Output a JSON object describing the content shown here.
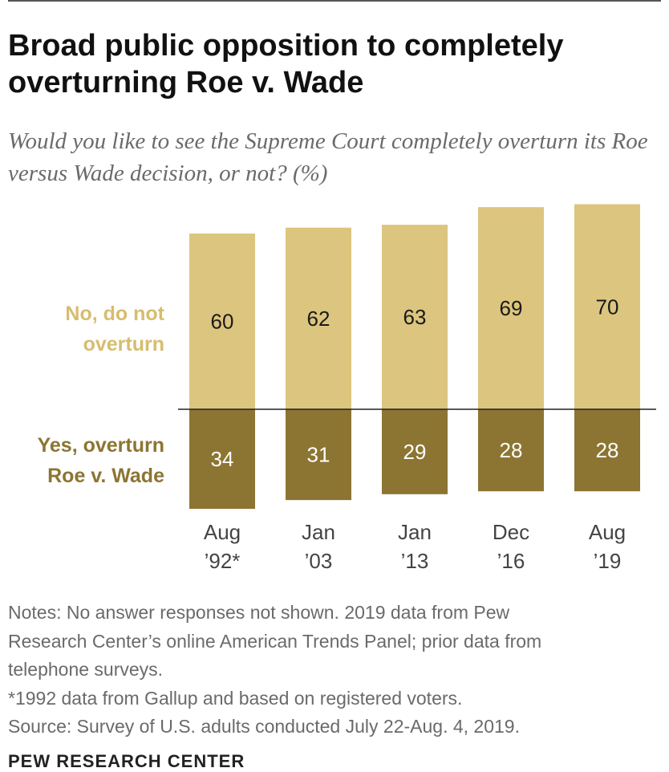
{
  "title": "Broad public opposition to completely overturning Roe v. Wade",
  "subtitle": "Would you like to see the Supreme Court completely overturn its Roe versus Wade decision, or not? (%)",
  "colors": {
    "no_bar": "#dcc57e",
    "yes_bar": "#8c7532",
    "no_label": "#d6bd6e",
    "yes_label": "#8c7532",
    "bar_text": "#1a1a1a",
    "bar_text_dark": "#ffffff",
    "tick": "#444444"
  },
  "chart_data": {
    "type": "bar",
    "stacking": "diverging",
    "categories": [
      [
        "Aug",
        "’92*"
      ],
      [
        "Jan",
        "’03"
      ],
      [
        "Jan",
        "’13"
      ],
      [
        "Dec",
        "’16"
      ],
      [
        "Aug",
        "’19"
      ]
    ],
    "series": [
      {
        "name": "No, do not overturn",
        "label_lines": [
          "No, do not",
          "overturn"
        ],
        "direction": "up",
        "values": [
          60,
          62,
          63,
          69,
          70
        ]
      },
      {
        "name": "Yes, overturn Roe v. Wade",
        "label_lines": [
          "Yes, overturn",
          "Roe v. Wade"
        ],
        "direction": "down",
        "values": [
          34,
          31,
          29,
          28,
          28
        ]
      }
    ],
    "grid": false,
    "legend": "left labels"
  },
  "notes": [
    "Notes: No answer responses not shown. 2019 data from Pew",
    "Research Center’s online American Trends Panel; prior data from",
    "telephone surveys.",
    "*1992 data from Gallup and based on registered voters.",
    "Source: Survey of U.S. adults conducted July 22-Aug. 4, 2019."
  ],
  "brand": "PEW RESEARCH CENTER"
}
